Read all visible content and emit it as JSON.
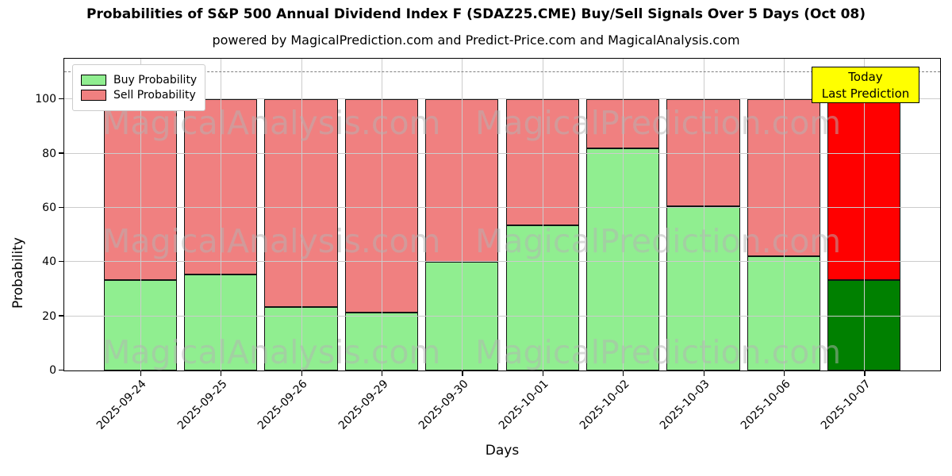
{
  "header": {
    "title": "Probabilities of S&P 500 Annual Dividend Index F (SDAZ25.CME) Buy/Sell Signals Over 5 Days (Oct 08)",
    "subtitle": "powered by MagicalPrediction.com and Predict-Price.com and MagicalAnalysis.com"
  },
  "chart_data": {
    "type": "bar",
    "stacked": true,
    "title": "Probabilities of S&P 500 Annual Dividend Index F (SDAZ25.CME) Buy/Sell Signals Over 5 Days (Oct 08)",
    "subtitle": "powered by MagicalPrediction.com and Predict-Price.com and MagicalAnalysis.com",
    "xlabel": "Days",
    "ylabel": "Probability",
    "ylim": [
      0,
      115
    ],
    "yticks": [
      0,
      20,
      40,
      60,
      80,
      100
    ],
    "grid": true,
    "legend_position": "upper left",
    "threshold_line": {
      "value": 110,
      "style": "dashed",
      "color": "#808080"
    },
    "categories": [
      "2025-09-24",
      "2025-09-25",
      "2025-09-26",
      "2025-09-29",
      "2025-09-30",
      "2025-10-01",
      "2025-10-02",
      "2025-10-03",
      "2025-10-06",
      "2025-10-07"
    ],
    "series": [
      {
        "name": "Buy Probability",
        "values": [
          33.5,
          35.5,
          23.5,
          21.5,
          40.0,
          53.5,
          82.0,
          60.5,
          42.0,
          33.3
        ],
        "color": "#90EE90",
        "today_color": "#008000"
      },
      {
        "name": "Sell Probability",
        "values": [
          66.5,
          64.5,
          76.5,
          78.5,
          60.0,
          46.5,
          18.0,
          39.5,
          58.0,
          66.7
        ],
        "color": "#F08080",
        "today_color": "#FF0000"
      }
    ],
    "today_index": 9,
    "annotation": {
      "line1": "Today",
      "line2": "Last Prediction",
      "bg_color": "#FFFF00"
    }
  },
  "watermarks": {
    "texts": [
      "MagicalAnalysis.com",
      "MagicalPrediction.com"
    ]
  }
}
